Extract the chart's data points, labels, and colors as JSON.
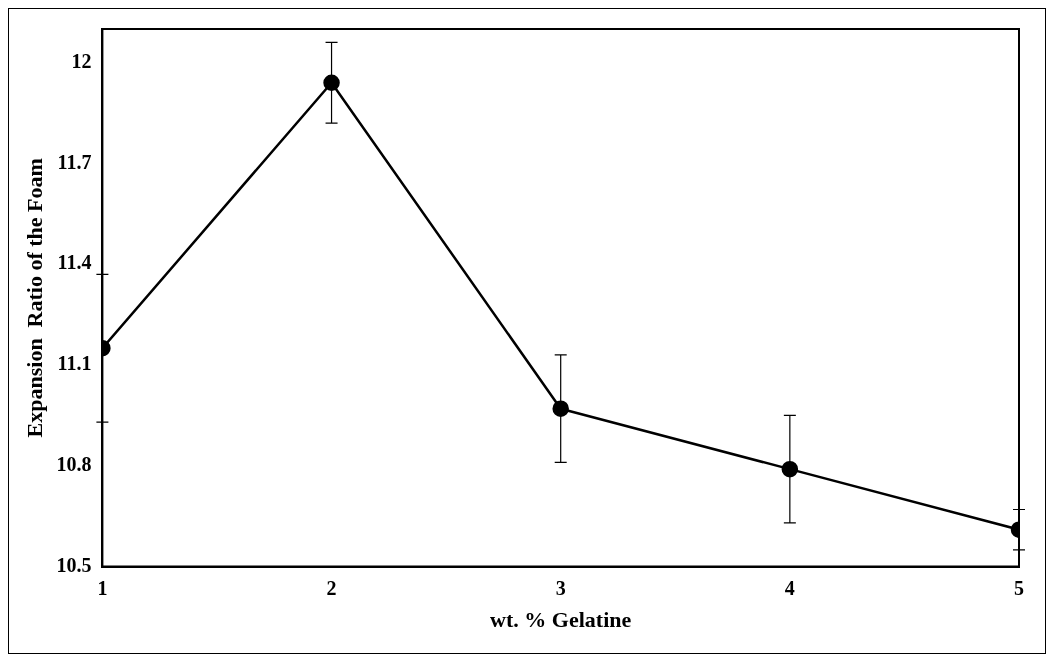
{
  "chart_data": {
    "type": "line",
    "xlabel": "wt. % Gelatine",
    "ylabel": "Expansion  Ratio of the Foam",
    "x": [
      1,
      2,
      3,
      4,
      5
    ],
    "series": [
      {
        "color": "#000000",
        "values": [
          11.15,
          11.94,
          10.97,
          10.79,
          10.61
        ],
        "errors": [
          0.22,
          0.12,
          0.16,
          0.16,
          0.06
        ]
      }
    ],
    "xlim": [
      1,
      5
    ],
    "xticks": [
      1,
      2,
      3,
      4,
      5
    ],
    "ylim": [
      10.5,
      12.1
    ],
    "yticks": [
      10.5,
      10.8,
      11.1,
      11.4,
      11.7,
      12
    ],
    "marker": "circle",
    "line_style": "solid",
    "grid": false,
    "legend": false
  }
}
